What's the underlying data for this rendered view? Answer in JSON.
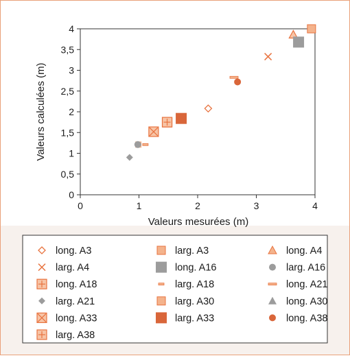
{
  "chart_data": {
    "type": "scatter",
    "xlabel": "Valeurs mesurées (m)",
    "ylabel": "Valeurs calculées (m)",
    "xlim": [
      0,
      4
    ],
    "ylim": [
      0,
      4
    ],
    "x_ticks": [
      "0",
      "1",
      "2",
      "3",
      "4"
    ],
    "y_ticks": [
      "0",
      "0,5",
      "1",
      "1,5",
      "2",
      "2,5",
      "3",
      "3,5",
      "4"
    ],
    "grid": false,
    "legend_position": "bottom",
    "colors": {
      "orange": "#e8733f",
      "dark_orange": "#d9663a",
      "light_orange": "#f4b38c",
      "gray": "#9c9c9c"
    },
    "series": [
      {
        "name": "long. A3",
        "marker": "diamond-open",
        "color": "#e8733f",
        "points": [
          [
            2.18,
            2.08
          ]
        ]
      },
      {
        "name": "larg. A3",
        "marker": "square-small",
        "color": "#f4b38c",
        "points": [
          [
            0.99,
            1.21
          ]
        ]
      },
      {
        "name": "long. A4",
        "marker": "triangle-open",
        "color": "#e8733f",
        "points": [
          [
            3.63,
            3.86
          ]
        ]
      },
      {
        "name": "larg. A4",
        "marker": "x",
        "color": "#e8733f",
        "points": [
          [
            3.2,
            3.33
          ]
        ]
      },
      {
        "name": "long. A16",
        "marker": "square-large",
        "color": "#9c9c9c",
        "points": [
          [
            3.72,
            3.68
          ]
        ]
      },
      {
        "name": "larg. A16",
        "marker": "circle",
        "color": "#9c9c9c",
        "points": [
          [
            0.98,
            1.21
          ]
        ]
      },
      {
        "name": "long. A18",
        "marker": "square-plus",
        "color": "#e8733f",
        "points": [
          [
            1.48,
            1.75
          ]
        ]
      },
      {
        "name": "larg. A18",
        "marker": "dash-small",
        "color": "#e8733f",
        "points": [
          [
            1.11,
            1.21
          ]
        ]
      },
      {
        "name": "long. A21",
        "marker": "dash",
        "color": "#e8733f",
        "points": [
          [
            2.62,
            2.83
          ]
        ]
      },
      {
        "name": "larg. A21",
        "marker": "diamond",
        "color": "#9c9c9c",
        "points": [
          [
            0.84,
            0.9
          ]
        ]
      },
      {
        "name": "larg. A30",
        "marker": "square-light",
        "color": "#f4b38c",
        "points": [
          [
            3.94,
            4.0
          ]
        ]
      },
      {
        "name": "long. A30",
        "marker": "triangle",
        "color": "#9c9c9c",
        "points": [
          [
            1.25,
            1.48
          ]
        ]
      },
      {
        "name": "long. A33",
        "marker": "square-x",
        "color": "#e8733f",
        "points": [
          [
            1.25,
            1.52
          ]
        ]
      },
      {
        "name": "larg. A33",
        "marker": "square-solid",
        "color": "#d9663a",
        "points": [
          [
            1.72,
            1.84
          ]
        ]
      },
      {
        "name": "long. A38",
        "marker": "circle",
        "color": "#d9663a",
        "points": [
          [
            2.68,
            2.72
          ]
        ]
      },
      {
        "name": "larg. A38",
        "marker": "square-plus",
        "color": "#e8733f",
        "points": [
          [
            1.48,
            1.75
          ]
        ]
      }
    ],
    "legend": [
      {
        "label": "long. A3",
        "marker": "diamond-open",
        "color": "#e8733f"
      },
      {
        "label": "larg. A3",
        "marker": "square-light",
        "color": "#f4b38c"
      },
      {
        "label": "long. A4",
        "marker": "triangle-light",
        "color": "#f4b38c"
      },
      {
        "label": "larg. A4",
        "marker": "x",
        "color": "#e8733f"
      },
      {
        "label": "long. A16",
        "marker": "square-large",
        "color": "#9c9c9c"
      },
      {
        "label": "larg. A16",
        "marker": "circle",
        "color": "#9c9c9c"
      },
      {
        "label": "long. A18",
        "marker": "square-plus",
        "color": "#e8733f"
      },
      {
        "label": "larg. A18",
        "marker": "dash-small",
        "color": "#e8733f"
      },
      {
        "label": "long. A21",
        "marker": "dash",
        "color": "#e8733f"
      },
      {
        "label": "larg. A21",
        "marker": "diamond",
        "color": "#9c9c9c"
      },
      {
        "label": "larg. A30",
        "marker": "square-light",
        "color": "#f4b38c"
      },
      {
        "label": "long. A30",
        "marker": "triangle",
        "color": "#9c9c9c"
      },
      {
        "label": "long. A33",
        "marker": "square-x",
        "color": "#e8733f"
      },
      {
        "label": "larg. A33",
        "marker": "square-solid",
        "color": "#d9663a"
      },
      {
        "label": "long. A38",
        "marker": "circle",
        "color": "#d9663a"
      },
      {
        "label": "larg. A38",
        "marker": "square-plus",
        "color": "#e8733f"
      }
    ]
  }
}
